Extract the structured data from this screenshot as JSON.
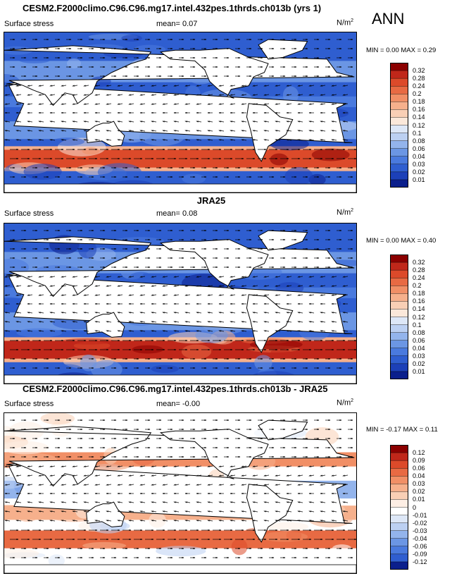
{
  "season": "ANN",
  "panels": [
    {
      "title": "CESM2.F2000climo.C96.C96.mg17.intel.432pes.1thrds.ch013b (yrs 1)",
      "variable": "Surface stress",
      "mean_label": "mean=  0.07",
      "units": "N/m",
      "units_sup": "2",
      "minmax": "MIN =  0.00 MAX =  0.29",
      "colorbar_labels": [
        "0.32",
        "0.28",
        "0.24",
        "0.2",
        "0.18",
        "0.16",
        "0.14",
        "0.12",
        "0.1",
        "0.08",
        "0.06",
        "0.04",
        "0.03",
        "0.02",
        "0.01"
      ]
    },
    {
      "title": "JRA25",
      "variable": "Surface stress",
      "mean_label": "mean=  0.08",
      "units": "N/m",
      "units_sup": "2",
      "minmax": "MIN =  0.00 MAX =  0.40",
      "colorbar_labels": [
        "0.32",
        "0.28",
        "0.24",
        "0.2",
        "0.18",
        "0.16",
        "0.14",
        "0.12",
        "0.1",
        "0.08",
        "0.06",
        "0.04",
        "0.03",
        "0.02",
        "0.01"
      ]
    },
    {
      "title": "CESM2.F2000climo.C96.C96.mg17.intel.432pes.1thrds.ch013b - JRA25",
      "variable": "Surface stress",
      "mean_label": "mean=  -0.00",
      "units": "N/m",
      "units_sup": "2",
      "minmax": "MIN = -0.17 MAX =  0.11",
      "colorbar_labels": [
        "0.12",
        "0.09",
        "0.06",
        "0.04",
        "0.03",
        "0.02",
        "0.01",
        "0",
        "-0.01",
        "-0.02",
        "-0.03",
        "-0.04",
        "-0.06",
        "-0.09",
        "-0.12"
      ]
    }
  ],
  "colors": {
    "abs_scale": [
      "#8b0000",
      "#c0271a",
      "#dc4a2a",
      "#e86a43",
      "#f18f66",
      "#f6b08c",
      "#f9cfb5",
      "#fbe8da",
      "#dde7f7",
      "#bcd0f2",
      "#93b4ec",
      "#6b96e4",
      "#4a7ade",
      "#2f5ed0",
      "#1c40b8",
      "#0b1f8c"
    ],
    "diff_scale": [
      "#8b0000",
      "#c0271a",
      "#dc4a2a",
      "#e86a43",
      "#f18f66",
      "#f6b08c",
      "#f9cfb5",
      "#fdeee4",
      "#ffffff",
      "#dde7f7",
      "#bcd0f2",
      "#93b4ec",
      "#6b96e4",
      "#4a7ade",
      "#2f5ed0",
      "#0b1f8c"
    ],
    "land": "#ffffff"
  }
}
